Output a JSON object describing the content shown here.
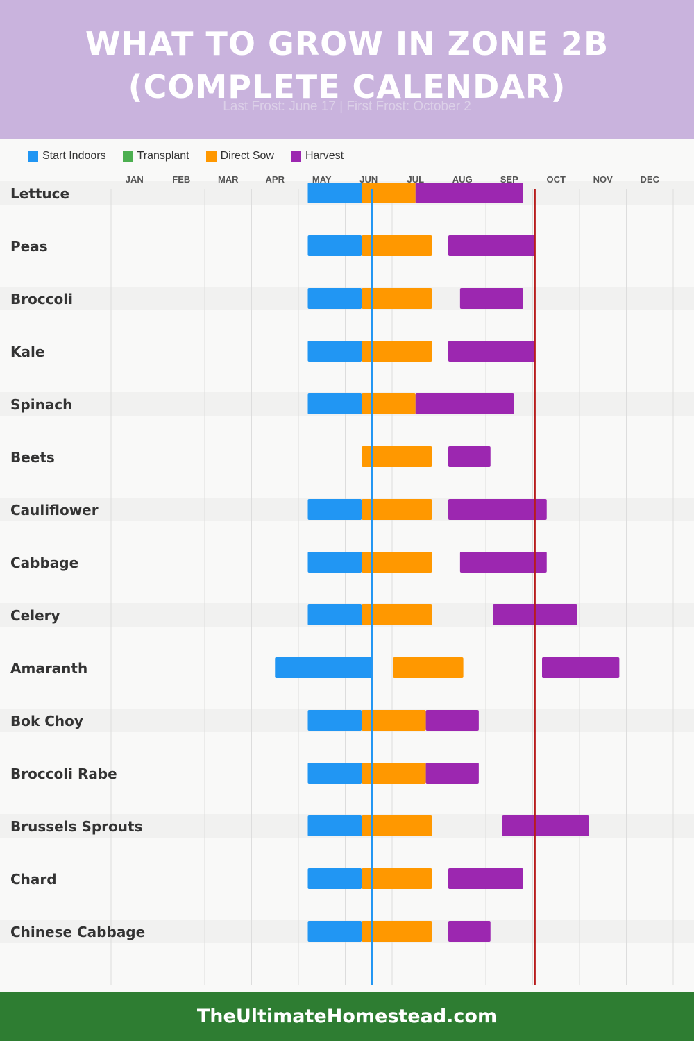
{
  "header": {
    "title_line1": "WHAT TO GROW IN ZONE 2B",
    "title_line2": "(COMPLETE CALENDAR)",
    "subtitle": "Last Frost: June 17 | First Frost: October 2"
  },
  "legend": [
    {
      "label": "Start Indoors",
      "color": "#2196f3"
    },
    {
      "label": "Transplant",
      "color": "#4caf50"
    },
    {
      "label": "Direct Sow",
      "color": "#ff9800"
    },
    {
      "label": "Harvest",
      "color": "#9c27b0"
    }
  ],
  "footer": {
    "text": "TheUltimateHomestead.com"
  },
  "chart_data": {
    "type": "gantt",
    "months": [
      "JAN",
      "FEB",
      "MAR",
      "APR",
      "MAY",
      "JUN",
      "JUL",
      "AUG",
      "SEP",
      "OCT",
      "NOV",
      "DEC"
    ],
    "markers": [
      {
        "name": "Last Frost",
        "month_value": 5.57,
        "color": "#2196f3"
      },
      {
        "name": "First Frost",
        "month_value": 9.05,
        "color": "#b71c1c"
      }
    ],
    "series_colors": {
      "start_indoors": "#2196f3",
      "transplant": "#4caf50",
      "direct_sow": "#ff9800",
      "harvest": "#9c27b0"
    },
    "crops": [
      {
        "name": "Lettuce",
        "start_indoors": [
          4.2,
          5.35
        ],
        "direct_sow": [
          5.35,
          6.5
        ],
        "harvest": [
          6.5,
          8.8
        ]
      },
      {
        "name": "Peas",
        "start_indoors": [
          4.2,
          5.35
        ],
        "direct_sow": [
          5.35,
          6.85
        ],
        "harvest": [
          7.2,
          9.05
        ]
      },
      {
        "name": "Broccoli",
        "start_indoors": [
          4.2,
          5.35
        ],
        "direct_sow": [
          5.35,
          6.85
        ],
        "harvest": [
          7.45,
          8.8
        ]
      },
      {
        "name": "Kale",
        "start_indoors": [
          4.2,
          5.35
        ],
        "direct_sow": [
          5.35,
          6.85
        ],
        "harvest": [
          7.2,
          9.05
        ]
      },
      {
        "name": "Spinach",
        "start_indoors": [
          4.2,
          5.35
        ],
        "direct_sow": [
          5.35,
          6.5
        ],
        "harvest": [
          6.5,
          8.6
        ]
      },
      {
        "name": "Beets",
        "direct_sow": [
          5.35,
          6.85
        ],
        "harvest": [
          7.2,
          8.1
        ]
      },
      {
        "name": "Cauliflower",
        "start_indoors": [
          4.2,
          5.35
        ],
        "direct_sow": [
          5.35,
          6.85
        ],
        "harvest": [
          7.2,
          9.3
        ]
      },
      {
        "name": "Cabbage",
        "start_indoors": [
          4.2,
          5.35
        ],
        "direct_sow": [
          5.35,
          6.85
        ],
        "harvest": [
          7.45,
          9.3
        ]
      },
      {
        "name": "Celery",
        "start_indoors": [
          4.2,
          5.35
        ],
        "direct_sow": [
          5.35,
          6.85
        ],
        "harvest": [
          8.15,
          9.95
        ]
      },
      {
        "name": "Amaranth",
        "start_indoors": [
          3.5,
          5.57
        ],
        "direct_sow": [
          6.02,
          7.52
        ],
        "harvest": [
          9.2,
          10.85
        ]
      },
      {
        "name": "Bok Choy",
        "start_indoors": [
          4.2,
          5.35
        ],
        "direct_sow": [
          5.35,
          6.72
        ],
        "harvest": [
          6.72,
          7.85
        ]
      },
      {
        "name": "Broccoli Rabe",
        "start_indoors": [
          4.2,
          5.35
        ],
        "direct_sow": [
          5.35,
          6.72
        ],
        "harvest": [
          6.72,
          7.85
        ]
      },
      {
        "name": "Brussels Sprouts",
        "start_indoors": [
          4.2,
          5.35
        ],
        "direct_sow": [
          5.35,
          6.85
        ],
        "harvest": [
          8.35,
          10.2
        ]
      },
      {
        "name": "Chard",
        "start_indoors": [
          4.2,
          5.35
        ],
        "direct_sow": [
          5.35,
          6.85
        ],
        "harvest": [
          7.2,
          8.8
        ]
      },
      {
        "name": "Chinese Cabbage",
        "start_indoors": [
          4.2,
          5.35
        ],
        "direct_sow": [
          5.35,
          6.85
        ],
        "harvest": [
          7.2,
          8.1
        ]
      }
    ]
  }
}
